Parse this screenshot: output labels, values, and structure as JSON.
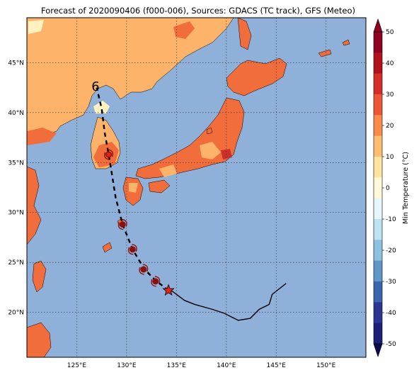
{
  "title": "Forecast of 2020090406 (f000-006), Sources: GDACS (TC track), GFS (Meteo)",
  "map": {
    "lon_range": [
      120,
      154
    ],
    "lat_range": [
      15.5,
      49.5
    ],
    "lon_ticks": [
      125,
      130,
      135,
      140,
      145,
      150
    ],
    "lon_tick_labels": [
      "125°E",
      "130°E",
      "135°E",
      "140°E",
      "145°E",
      "150°E"
    ],
    "lat_ticks": [
      20,
      25,
      30,
      35,
      40,
      45
    ],
    "lat_tick_labels": [
      "20°N",
      "25°N",
      "30°N",
      "35°N",
      "40°N",
      "45°N"
    ],
    "ocean_color": "#8fb1d9",
    "land_colors": {
      "t10_20": "#fdb46a",
      "t20_30": "#f16d3c",
      "t0_10": "#fff2c0",
      "t30_40": "#c9302a"
    }
  },
  "track": {
    "observed": [
      [
        146,
        22.9
      ],
      [
        144.6,
        21.8
      ],
      [
        144.3,
        20.8
      ],
      [
        143.3,
        20.3
      ],
      [
        142.4,
        19.4
      ],
      [
        141.2,
        19.2
      ],
      [
        139.8,
        19.9
      ],
      [
        138.6,
        20.3
      ],
      [
        136.8,
        20.8
      ],
      [
        135.8,
        21.2
      ],
      [
        134.6,
        22.1
      ],
      [
        134.2,
        22.2
      ]
    ],
    "forecast": [
      [
        134.2,
        22.2
      ],
      [
        132.9,
        23.2
      ],
      [
        131.8,
        24.3
      ],
      [
        130.6,
        26.3
      ],
      [
        129.6,
        28.8
      ],
      [
        128.9,
        31.5
      ],
      [
        128.5,
        34.0
      ],
      [
        128.2,
        35.8
      ],
      [
        127.8,
        38.0
      ],
      [
        127.5,
        40.4
      ],
      [
        127.0,
        42.5
      ]
    ],
    "star_pos": [
      134.2,
      22.2
    ],
    "storm_symbols": [
      [
        132.9,
        23.1
      ],
      [
        131.7,
        24.3
      ],
      [
        130.6,
        26.3
      ],
      [
        129.6,
        28.8
      ],
      [
        128.2,
        35.8
      ]
    ],
    "label": "6",
    "label_pos": [
      126.9,
      42.6
    ]
  },
  "colorbar": {
    "label": "Min Temperature (°C)",
    "ticks": [
      50,
      40,
      30,
      20,
      10,
      0,
      -10,
      -20,
      -30,
      -40,
      -50
    ],
    "colors": [
      "#900020",
      "#b3101e",
      "#d52e28",
      "#ec5536",
      "#f98a4c",
      "#fdbd71",
      "#ffe4a0",
      "#fff9d8",
      "#e6f7fc",
      "#bce3ef",
      "#8cc2df",
      "#5f98c8",
      "#3a64ad",
      "#2b3594",
      "#1d1f78"
    ]
  }
}
